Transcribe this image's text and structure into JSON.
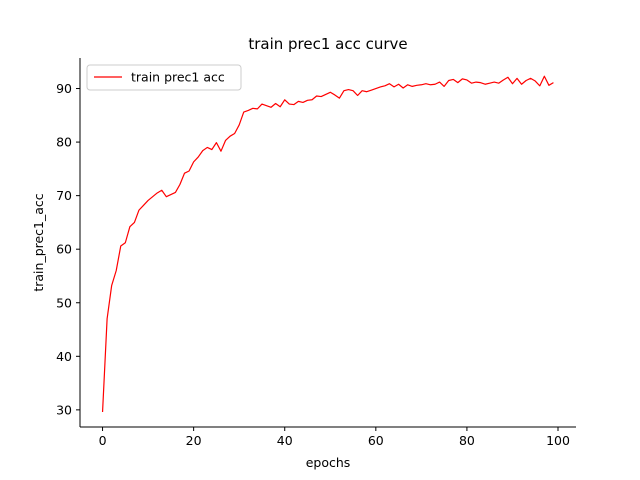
{
  "chart_data": {
    "type": "line",
    "title": "train prec1 acc curve",
    "xlabel": "epochs",
    "ylabel": "train_prec1_acc",
    "xlim": [
      -4.95,
      103.95
    ],
    "ylim": [
      26.8,
      95.7
    ],
    "xticks": [
      0,
      20,
      40,
      60,
      80,
      100
    ],
    "yticks": [
      30,
      40,
      50,
      60,
      70,
      80,
      90
    ],
    "grid": false,
    "legend_position": "upper-left",
    "series": [
      {
        "name": "train prec1 acc",
        "color": "#ff0000",
        "x": [
          0,
          1,
          2,
          3,
          4,
          5,
          6,
          7,
          8,
          9,
          10,
          11,
          12,
          13,
          14,
          15,
          16,
          17,
          18,
          19,
          20,
          21,
          22,
          23,
          24,
          25,
          26,
          27,
          28,
          29,
          30,
          31,
          32,
          33,
          34,
          35,
          36,
          37,
          38,
          39,
          40,
          41,
          42,
          43,
          44,
          45,
          46,
          47,
          48,
          49,
          50,
          51,
          52,
          53,
          54,
          55,
          56,
          57,
          58,
          59,
          60,
          61,
          62,
          63,
          64,
          65,
          66,
          67,
          68,
          69,
          70,
          71,
          72,
          73,
          74,
          75,
          76,
          77,
          78,
          79,
          80,
          81,
          82,
          83,
          84,
          85,
          86,
          87,
          88,
          89,
          90,
          91,
          92,
          93,
          94,
          95,
          96,
          97,
          98,
          99
        ],
        "y": [
          29.6,
          47.0,
          53.2,
          56.0,
          60.6,
          61.2,
          64.2,
          65.0,
          67.3,
          68.2,
          69.1,
          69.8,
          70.5,
          71.0,
          69.8,
          70.2,
          70.6,
          72.1,
          74.2,
          74.6,
          76.3,
          77.2,
          78.4,
          79.0,
          78.6,
          79.9,
          78.3,
          80.3,
          81.1,
          81.6,
          83.2,
          85.6,
          85.9,
          86.3,
          86.2,
          87.1,
          86.8,
          86.5,
          87.2,
          86.6,
          87.9,
          87.1,
          87.0,
          87.6,
          87.4,
          87.8,
          87.9,
          88.6,
          88.5,
          88.9,
          89.3,
          88.8,
          88.2,
          89.6,
          89.8,
          89.6,
          88.7,
          89.6,
          89.4,
          89.7,
          90.0,
          90.3,
          90.5,
          90.9,
          90.3,
          90.8,
          90.1,
          90.7,
          90.4,
          90.6,
          90.7,
          90.9,
          90.7,
          90.8,
          91.2,
          90.4,
          91.5,
          91.7,
          91.1,
          91.8,
          91.6,
          91.0,
          91.2,
          91.1,
          90.8,
          91.0,
          91.2,
          91.0,
          91.6,
          92.1,
          90.9,
          91.9,
          90.8,
          91.5,
          91.9,
          91.4,
          90.5,
          92.3,
          90.6,
          91.1
        ]
      }
    ]
  }
}
